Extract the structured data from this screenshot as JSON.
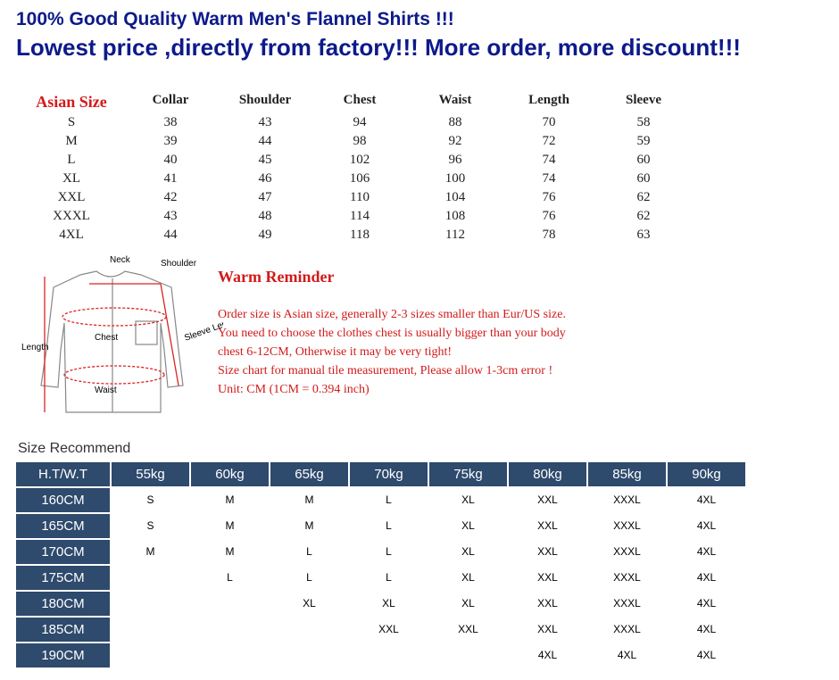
{
  "header": {
    "line1": "100% Good Quality Warm Men's Flannel Shirts !!!",
    "line2": "Lowest price ,directly from factory!!! More order, more discount!!!"
  },
  "size_table": {
    "headers": [
      "Asian Size",
      "Collar",
      "Shoulder",
      "Chest",
      "Waist",
      "Length",
      "Sleeve"
    ],
    "rows": [
      [
        "S",
        38,
        43,
        94,
        88,
        70,
        58
      ],
      [
        "M",
        39,
        44,
        98,
        92,
        72,
        59
      ],
      [
        "L",
        40,
        45,
        102,
        96,
        74,
        60
      ],
      [
        "XL",
        41,
        46,
        106,
        100,
        74,
        60
      ],
      [
        "XXL",
        42,
        47,
        110,
        104,
        76,
        62
      ],
      [
        "XXXL",
        43,
        48,
        114,
        108,
        76,
        62
      ],
      [
        "4XL",
        44,
        49,
        118,
        112,
        78,
        63
      ]
    ]
  },
  "diagram": {
    "neck": "Neck",
    "shoulder": "Shoulder",
    "chest": "Chest",
    "waist": "Waist",
    "length": "Length",
    "sleeve_length": "Sleeve Length"
  },
  "reminder": {
    "title": "Warm Reminder",
    "lines": [
      "Order size is Asian size, generally 2-3 sizes smaller than Eur/US size.",
      "You need to choose the clothes chest is usually bigger than your body",
      "chest 6-12CM, Otherwise it may be very tight!",
      "Size chart for manual tile measurement, Please allow 1-3cm error !",
      "Unit: CM (1CM = 0.394 inch)"
    ]
  },
  "recommend": {
    "title": "Size Recommend",
    "headers": [
      "H.T/W.T",
      "55kg",
      "60kg",
      "65kg",
      "70kg",
      "75kg",
      "80kg",
      "85kg",
      "90kg"
    ],
    "rows": [
      [
        "160CM",
        "S",
        "M",
        "M",
        "L",
        "XL",
        "XXL",
        "XXXL",
        "4XL"
      ],
      [
        "165CM",
        "S",
        "M",
        "M",
        "L",
        "XL",
        "XXL",
        "XXXL",
        "4XL"
      ],
      [
        "170CM",
        "M",
        "M",
        "L",
        "L",
        "XL",
        "XXL",
        "XXXL",
        "4XL"
      ],
      [
        "175CM",
        null,
        "L",
        "L",
        "L",
        "XL",
        "XXL",
        "XXXL",
        "4XL"
      ],
      [
        "180CM",
        null,
        null,
        "XL",
        "XL",
        "XL",
        "XXL",
        "XXXL",
        "4XL"
      ],
      [
        "185CM",
        null,
        null,
        null,
        "XXL",
        "XXL",
        "XXL",
        "XXXL",
        "4XL"
      ],
      [
        "190CM",
        null,
        null,
        null,
        null,
        null,
        "4XL",
        "4XL",
        "4XL"
      ]
    ]
  }
}
